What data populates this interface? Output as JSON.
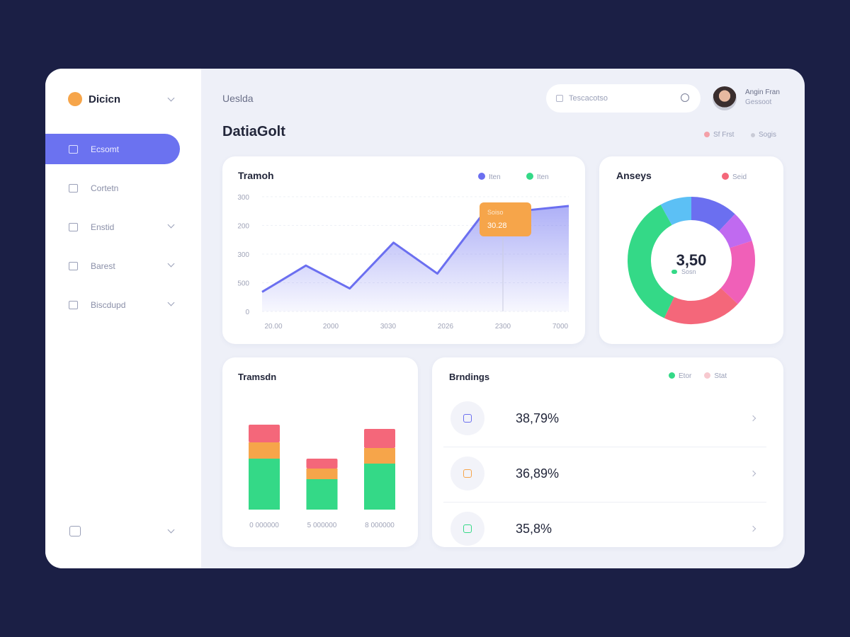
{
  "sidebar": {
    "brand": "Dicicn",
    "nav": [
      "Ecsomt",
      "Cortetn",
      "Enstid",
      "Barest",
      "Biscdupd"
    ]
  },
  "header": {
    "breadcrumb": "Ueslda",
    "search_placeholder": "Tescacotso",
    "user_name": "Angin Fran",
    "user_role": "Gessoot",
    "page_title": "DatiaGolt",
    "filter": "Sf Frst",
    "action": "Sogis"
  },
  "chart_data": [
    {
      "type": "line",
      "title": "Tramoh",
      "legend": [
        "Iten",
        "Iten"
      ],
      "legend_colors": [
        "#6b6ff0",
        "#34d987"
      ],
      "y_labels": [
        "300",
        "200",
        "300",
        "500",
        "0"
      ],
      "x_labels": [
        "20.00",
        "2000",
        "3030",
        "2026",
        "2300",
        "7000"
      ],
      "values": [
        17,
        40,
        20,
        60,
        33,
        83,
        88,
        92
      ],
      "ylim": [
        0,
        100
      ],
      "color": "#6b6ff0",
      "tooltip": {
        "label": "Soiso",
        "value": "30.28"
      }
    },
    {
      "type": "donut",
      "title": "Anseys",
      "legend": [
        "Seid"
      ],
      "legend_colors": [
        "#f4677a"
      ],
      "center_value": "3,50",
      "center_label": "Sosn",
      "values": [
        12,
        8,
        17,
        20,
        35,
        8
      ],
      "colors": [
        "#6b6ff0",
        "#c06af0",
        "#f060b8",
        "#f4677a",
        "#34d987",
        "#5cc0f5"
      ]
    },
    {
      "type": "stacked_bar",
      "title": "Tramsdn",
      "categories": [
        "0 000000",
        "5 000000",
        "8 000000"
      ],
      "ylim": [
        0,
        140
      ],
      "series": [
        {
          "color": "#34d987",
          "values": [
            72,
            43,
            65
          ]
        },
        {
          "color": "#f6a54a",
          "values": [
            23,
            15,
            22
          ]
        },
        {
          "color": "#f4677a",
          "values": [
            25,
            14,
            27
          ]
        }
      ]
    }
  ],
  "list": {
    "title": "Brndings",
    "legend": [
      "Etor",
      "Stat"
    ],
    "legend_colors": [
      "#34d987",
      "#f7c9cf"
    ],
    "rows": [
      "38,79%",
      "36,89%",
      "35,8%"
    ]
  }
}
